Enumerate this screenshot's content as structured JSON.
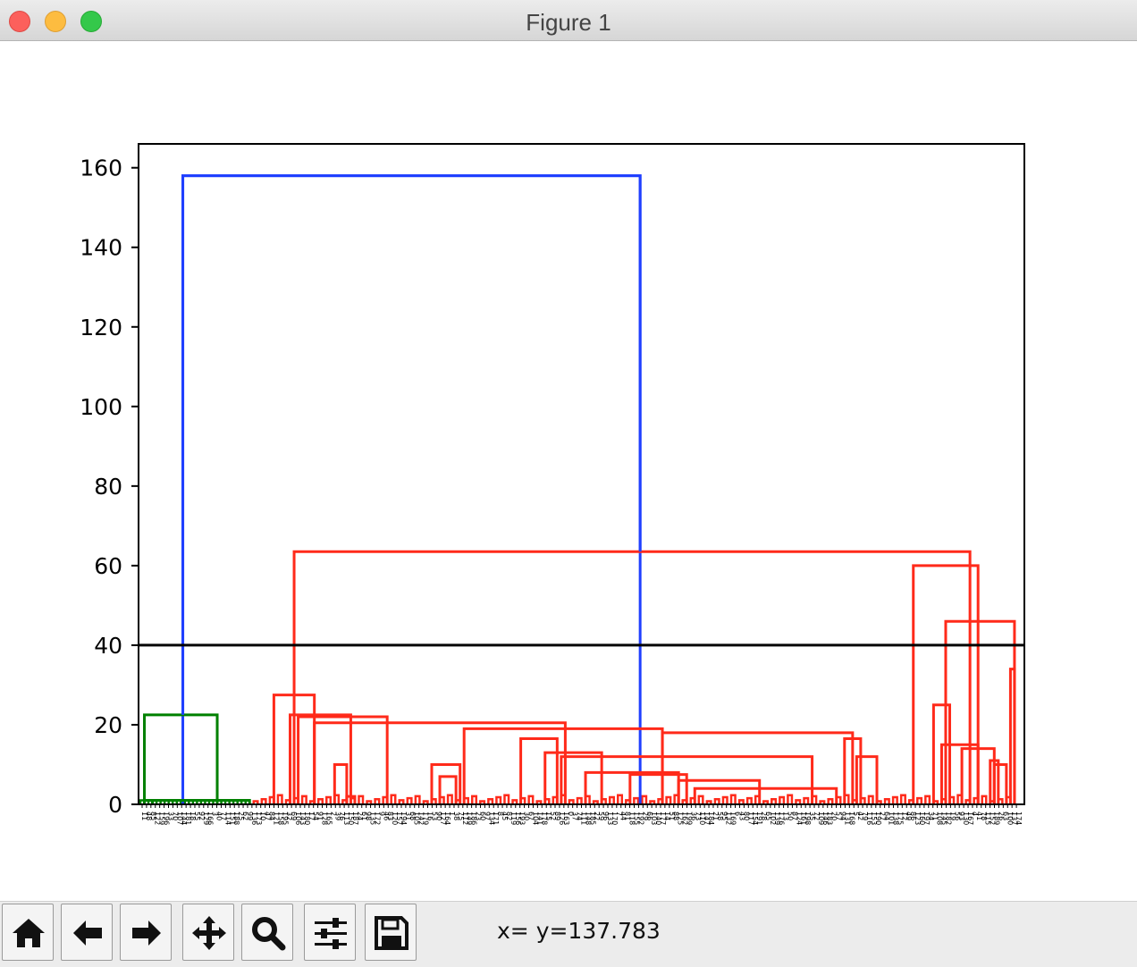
{
  "window": {
    "title": "Figure 1"
  },
  "toolbar": {
    "buttons": [
      {
        "name": "home",
        "icon": "home-icon"
      },
      {
        "name": "back",
        "icon": "arrow-left-icon"
      },
      {
        "name": "forward",
        "icon": "arrow-right-icon"
      },
      {
        "name": "pan",
        "icon": "move-icon"
      },
      {
        "name": "zoom",
        "icon": "magnifier-icon"
      },
      {
        "name": "configure-subplots",
        "icon": "sliders-icon"
      },
      {
        "name": "save",
        "icon": "floppy-disk-icon"
      }
    ],
    "coords_text": "x= y=137.783"
  },
  "colors": {
    "blue": "#1f3fff",
    "green": "#008000",
    "red": "#ff2a1a",
    "black": "#000000"
  },
  "chart_data": {
    "type": "dendrogram",
    "title": "",
    "xlabel": "",
    "ylabel": "",
    "ylim": [
      0,
      166
    ],
    "yticks": [
      0,
      20,
      40,
      60,
      80,
      100,
      120,
      140,
      160
    ],
    "leaf_count": 200,
    "threshold_line": {
      "y": 40,
      "color": "#000000"
    },
    "merges": [
      {
        "x1": 10.5,
        "x2": 123.5,
        "h": 158,
        "color": "blue",
        "note": "root"
      },
      {
        "x1": 1,
        "x2": 19,
        "h": 22.5,
        "color": "green"
      },
      {
        "x1": 1,
        "x2": 3,
        "h": 1,
        "color": "green"
      },
      {
        "x1": 3,
        "x2": 27,
        "h": 1,
        "color": "green"
      },
      {
        "x1": 38,
        "x2": 205,
        "h": 63.5,
        "color": "red"
      },
      {
        "x1": 33,
        "x2": 43,
        "h": 27.5,
        "color": "red"
      },
      {
        "x1": 37,
        "x2": 52,
        "h": 22.5,
        "color": "red"
      },
      {
        "x1": 39,
        "x2": 61,
        "h": 22,
        "color": "red"
      },
      {
        "x1": 43,
        "x2": 105,
        "h": 20.5,
        "color": "red"
      },
      {
        "x1": 80,
        "x2": 129,
        "h": 19,
        "color": "red"
      },
      {
        "x1": 129,
        "x2": 176,
        "h": 18,
        "color": "red"
      },
      {
        "x1": 94,
        "x2": 103,
        "h": 16.5,
        "color": "red"
      },
      {
        "x1": 100,
        "x2": 114,
        "h": 13,
        "color": "red"
      },
      {
        "x1": 104,
        "x2": 166,
        "h": 12,
        "color": "red"
      },
      {
        "x1": 110,
        "x2": 133,
        "h": 8,
        "color": "red"
      },
      {
        "x1": 121,
        "x2": 135,
        "h": 7.5,
        "color": "red"
      },
      {
        "x1": 133,
        "x2": 153,
        "h": 6,
        "color": "red"
      },
      {
        "x1": 137,
        "x2": 172,
        "h": 4,
        "color": "red"
      },
      {
        "x1": 174,
        "x2": 178,
        "h": 16.5,
        "color": "red"
      },
      {
        "x1": 177,
        "x2": 182,
        "h": 12,
        "color": "red"
      },
      {
        "x1": 72,
        "x2": 79,
        "h": 10,
        "color": "red"
      },
      {
        "x1": 74,
        "x2": 78,
        "h": 7,
        "color": "red"
      },
      {
        "x1": 48,
        "x2": 51,
        "h": 10,
        "color": "red"
      },
      {
        "x1": 51,
        "x2": 53,
        "h": 2,
        "color": "red"
      },
      {
        "x1": 191,
        "x2": 207,
        "h": 60,
        "color": "red"
      },
      {
        "x1": 199,
        "x2": 216,
        "h": 46,
        "color": "red"
      },
      {
        "x1": 196,
        "x2": 200,
        "h": 25,
        "color": "red"
      },
      {
        "x1": 198,
        "x2": 207,
        "h": 15,
        "color": "red"
      },
      {
        "x1": 203,
        "x2": 211,
        "h": 14,
        "color": "red"
      },
      {
        "x1": 210,
        "x2": 212,
        "h": 11,
        "color": "red"
      },
      {
        "x1": 211,
        "x2": 214,
        "h": 10,
        "color": "red"
      },
      {
        "x1": 215,
        "x2": 216,
        "h": 34,
        "color": "red"
      }
    ]
  }
}
